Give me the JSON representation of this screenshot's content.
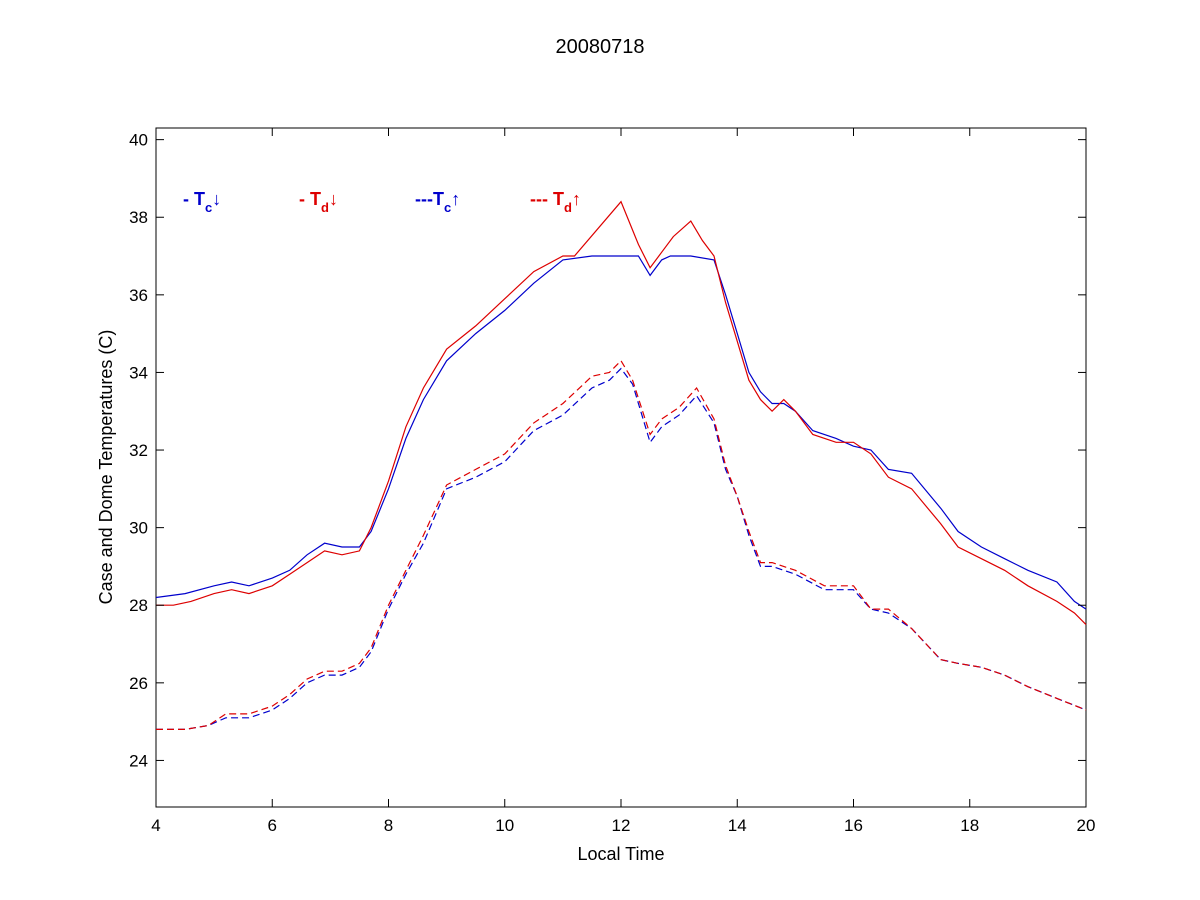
{
  "chart_data": {
    "type": "line",
    "title": "20080718",
    "xlabel": "Local Time",
    "ylabel": "Case and Dome Temperatures (C)",
    "xlim": [
      4,
      20
    ],
    "ylim": [
      22.8,
      40.3
    ],
    "xticks": [
      4,
      6,
      8,
      10,
      12,
      14,
      16,
      18,
      20
    ],
    "yticks": [
      24,
      26,
      28,
      30,
      32,
      34,
      36,
      38,
      40
    ],
    "grid": false,
    "legend_position": "top-left inside",
    "legend": [
      {
        "prefix": "- T",
        "sub": "c",
        "arrow": "↓",
        "color": "#0000cc"
      },
      {
        "prefix": "- T",
        "sub": "d",
        "arrow": "↓",
        "color": "#dd0000"
      },
      {
        "prefix": "---T",
        "sub": "c",
        "arrow": "↑",
        "color": "#0000cc"
      },
      {
        "prefix": "--- T",
        "sub": "d",
        "arrow": "↑",
        "color": "#dd0000"
      }
    ],
    "series": [
      {
        "key": "tc_down",
        "color": "#0000cc",
        "dash": "solid",
        "x": [
          4.0,
          4.5,
          5.0,
          5.3,
          5.6,
          6.0,
          6.3,
          6.6,
          6.9,
          7.2,
          7.5,
          7.7,
          8.0,
          8.3,
          8.6,
          9.0,
          9.5,
          10.0,
          10.5,
          11.0,
          11.5,
          12.0,
          12.3,
          12.5,
          12.7,
          12.85,
          13.2,
          13.6,
          13.8,
          14.0,
          14.2,
          14.4,
          14.6,
          14.8,
          15.0,
          15.3,
          15.7,
          16.0,
          16.3,
          16.6,
          17.0,
          17.5,
          17.8,
          18.2,
          18.6,
          19.0,
          19.5,
          19.8,
          20.0
        ],
        "y": [
          28.2,
          28.3,
          28.5,
          28.6,
          28.5,
          28.7,
          28.9,
          29.3,
          29.6,
          29.5,
          29.5,
          29.9,
          31.0,
          32.3,
          33.3,
          34.3,
          35.0,
          35.6,
          36.3,
          36.9,
          37.0,
          37.0,
          37.0,
          36.5,
          36.9,
          37.0,
          37.0,
          36.9,
          36.0,
          35.0,
          34.0,
          33.5,
          33.2,
          33.2,
          33.0,
          32.5,
          32.3,
          32.1,
          32.0,
          31.5,
          31.4,
          30.5,
          29.9,
          29.5,
          29.2,
          28.9,
          28.6,
          28.1,
          27.9
        ]
      },
      {
        "key": "td_down",
        "color": "#dd0000",
        "dash": "solid",
        "x": [
          4.0,
          4.3,
          4.6,
          5.0,
          5.3,
          5.6,
          6.0,
          6.3,
          6.6,
          6.9,
          7.2,
          7.5,
          7.7,
          8.0,
          8.3,
          8.6,
          9.0,
          9.5,
          10.0,
          10.5,
          11.0,
          11.2,
          12.0,
          12.3,
          12.5,
          12.7,
          12.9,
          13.2,
          13.4,
          13.6,
          13.8,
          14.0,
          14.2,
          14.4,
          14.6,
          14.8,
          15.0,
          15.3,
          15.7,
          16.0,
          16.3,
          16.6,
          17.0,
          17.5,
          17.8,
          18.2,
          18.6,
          19.0,
          19.5,
          19.8,
          20.0
        ],
        "y": [
          28.0,
          28.0,
          28.1,
          28.3,
          28.4,
          28.3,
          28.5,
          28.8,
          29.1,
          29.4,
          29.3,
          29.4,
          30.0,
          31.2,
          32.6,
          33.6,
          34.6,
          35.2,
          35.9,
          36.6,
          37.0,
          37.0,
          38.4,
          37.3,
          36.7,
          37.1,
          37.5,
          37.9,
          37.4,
          37.0,
          35.8,
          34.8,
          33.8,
          33.3,
          33.0,
          33.3,
          33.0,
          32.4,
          32.2,
          32.2,
          31.9,
          31.3,
          31.0,
          30.1,
          29.5,
          29.2,
          28.9,
          28.5,
          28.1,
          27.8,
          27.5
        ]
      },
      {
        "key": "tc_up",
        "color": "#0000cc",
        "dash": "dashed",
        "x": [
          4.0,
          4.5,
          4.9,
          5.2,
          5.6,
          6.0,
          6.3,
          6.6,
          6.9,
          7.2,
          7.5,
          7.7,
          8.0,
          8.3,
          8.6,
          9.0,
          9.5,
          10.0,
          10.5,
          11.0,
          11.5,
          11.8,
          12.0,
          12.2,
          12.5,
          12.7,
          13.0,
          13.3,
          13.6,
          13.8,
          14.0,
          14.2,
          14.4,
          14.6,
          15.0,
          15.5,
          16.0,
          16.3,
          16.6,
          17.0,
          17.5,
          17.8,
          18.2,
          18.6,
          19.0,
          19.5,
          20.0
        ],
        "y": [
          24.8,
          24.8,
          24.9,
          25.1,
          25.1,
          25.3,
          25.6,
          26.0,
          26.2,
          26.2,
          26.4,
          26.8,
          27.9,
          28.8,
          29.6,
          31.0,
          31.3,
          31.7,
          32.5,
          32.9,
          33.6,
          33.8,
          34.1,
          33.7,
          32.2,
          32.6,
          32.9,
          33.4,
          32.7,
          31.5,
          30.8,
          29.8,
          29.0,
          29.0,
          28.8,
          28.4,
          28.4,
          27.9,
          27.8,
          27.4,
          26.6,
          26.5,
          26.4,
          26.2,
          25.9,
          25.6,
          25.3
        ]
      },
      {
        "key": "td_up",
        "color": "#dd0000",
        "dash": "dashed",
        "x": [
          4.0,
          4.5,
          4.9,
          5.2,
          5.6,
          6.0,
          6.3,
          6.6,
          6.9,
          7.2,
          7.5,
          7.7,
          8.0,
          8.3,
          8.6,
          9.0,
          9.5,
          10.0,
          10.5,
          11.0,
          11.5,
          11.8,
          12.0,
          12.2,
          12.5,
          12.7,
          13.0,
          13.3,
          13.6,
          13.8,
          14.0,
          14.2,
          14.4,
          14.6,
          15.0,
          15.5,
          16.0,
          16.3,
          16.6,
          17.0,
          17.5,
          17.8,
          18.2,
          18.6,
          19.0,
          19.5,
          20.0
        ],
        "y": [
          24.8,
          24.8,
          24.9,
          25.2,
          25.2,
          25.4,
          25.7,
          26.1,
          26.3,
          26.3,
          26.5,
          26.9,
          28.0,
          28.9,
          29.8,
          31.1,
          31.5,
          31.9,
          32.7,
          33.2,
          33.9,
          34.0,
          34.3,
          33.8,
          32.4,
          32.8,
          33.1,
          33.6,
          32.8,
          31.6,
          30.8,
          29.9,
          29.1,
          29.1,
          28.9,
          28.5,
          28.5,
          27.9,
          27.9,
          27.4,
          26.6,
          26.5,
          26.4,
          26.2,
          25.9,
          25.6,
          25.3
        ]
      }
    ]
  }
}
